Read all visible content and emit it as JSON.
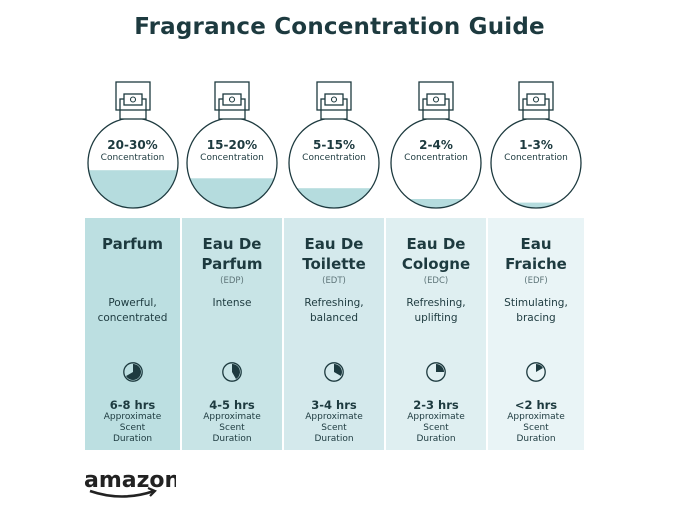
{
  "title": "Fragrance Concentration Guide",
  "colors": {
    "text": "#1d3a3f",
    "liquid": "#b5dcde",
    "card_start": "#bcdfe1",
    "card_end": "#eaf4f6"
  },
  "types": [
    {
      "percent": "20-30%",
      "concentration": "Concentration",
      "fill_level": 0.42,
      "name": "Parfum",
      "abbr": "",
      "description": "Powerful, concentrated",
      "duration": "6-8 hrs",
      "duration_label": "Approximate Scent Duration",
      "clock_fraction": 0.667
    },
    {
      "percent": "15-20%",
      "concentration": "Concentration",
      "fill_level": 0.33,
      "name": "Eau De Parfum",
      "abbr": "(EDP)",
      "description": "Intense",
      "duration": "4-5 hrs",
      "duration_label": "Approximate Scent Duration",
      "clock_fraction": 0.417
    },
    {
      "percent": "5-15%",
      "concentration": "Concentration",
      "fill_level": 0.22,
      "name": "Eau De Toilette",
      "abbr": "(EDT)",
      "description": "Refreshing, balanced",
      "duration": "3-4 hrs",
      "duration_label": "Approximate Scent Duration",
      "clock_fraction": 0.333
    },
    {
      "percent": "2-4%",
      "concentration": "Concentration",
      "fill_level": 0.1,
      "name": "Eau De Cologne",
      "abbr": "(EDC)",
      "description": "Refreshing, uplifting",
      "duration": "2-3 hrs",
      "duration_label": "Approximate Scent Duration",
      "clock_fraction": 0.25
    },
    {
      "percent": "1-3%",
      "concentration": "Concentration",
      "fill_level": 0.06,
      "name": "Eau Fraiche",
      "abbr": "(EDF)",
      "description": "Stimulating, bracing",
      "duration": "<2 hrs",
      "duration_label": "Approximate Scent Duration",
      "clock_fraction": 0.167
    }
  ],
  "logo": "amazon"
}
